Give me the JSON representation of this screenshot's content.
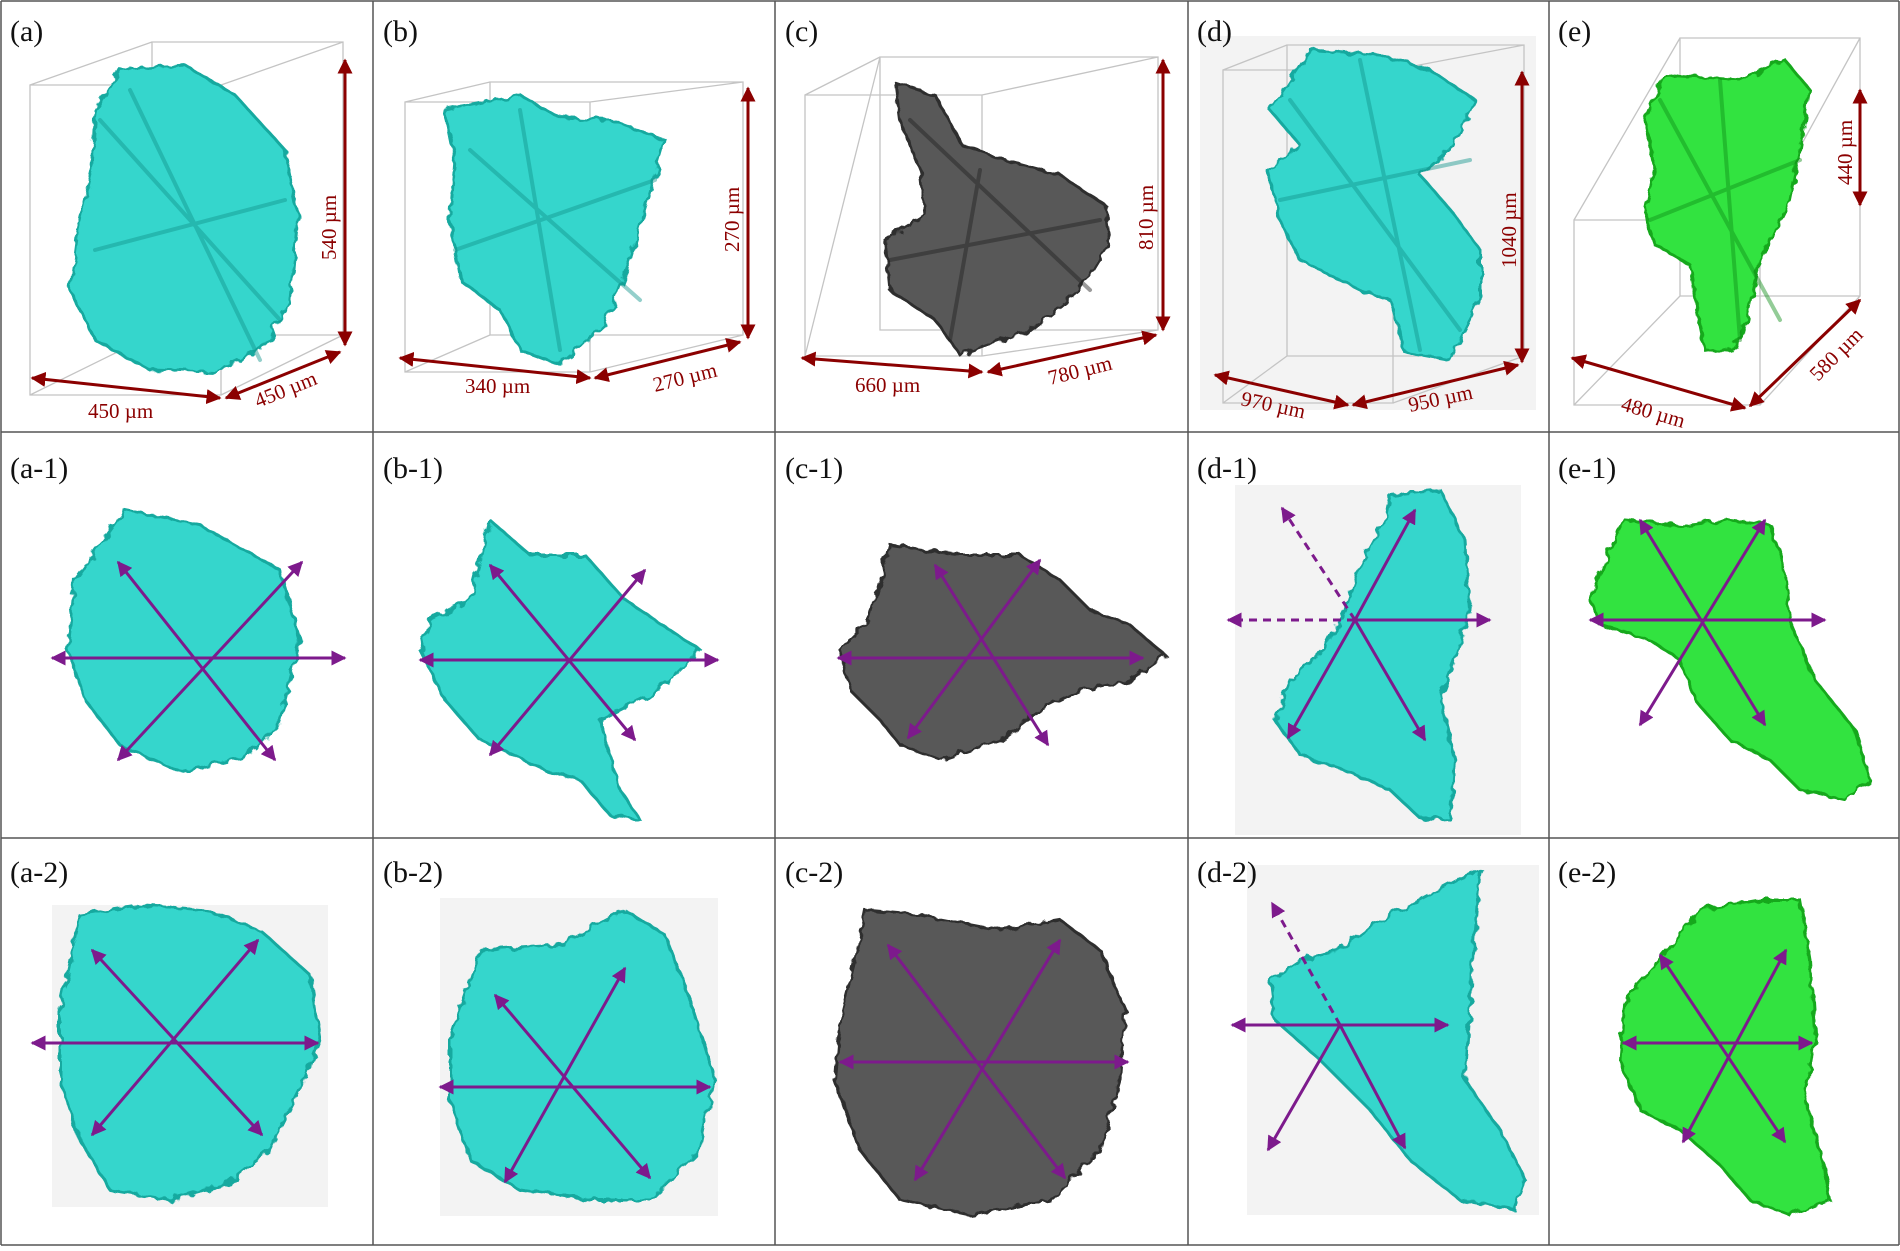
{
  "colors": {
    "cyan": "#35d6cc",
    "cyan_dark": "#16a99f",
    "gray": "#595959",
    "gray_dark": "#2f2f2f",
    "green": "#33e33f",
    "green_dark": "#13a81d",
    "arrow_purple": "#7d1a8c",
    "dimension_red": "#8b0000",
    "box_gray": "#bdbdbd",
    "panel_bg": "#f3f3f3",
    "grid_line": "#555555"
  },
  "panels": [
    {
      "id": "a",
      "label": "(a)",
      "row": 0,
      "col": 0,
      "color": "cyan",
      "dims": {
        "width": "450 µm",
        "depth": "450 µm",
        "height": "540 µm"
      }
    },
    {
      "id": "b",
      "label": "(b)",
      "row": 0,
      "col": 1,
      "color": "cyan",
      "dims": {
        "width": "340 µm",
        "depth": "270 µm",
        "height": "270 µm"
      }
    },
    {
      "id": "c",
      "label": "(c)",
      "row": 0,
      "col": 2,
      "color": "gray",
      "dims": {
        "width": "660 µm",
        "depth": "780 µm",
        "height": "810 µm"
      }
    },
    {
      "id": "d",
      "label": "(d)",
      "row": 0,
      "col": 3,
      "color": "cyan",
      "dims": {
        "width": "970 µm",
        "depth": "950 µm",
        "height": "1040 µm"
      }
    },
    {
      "id": "e",
      "label": "(e)",
      "row": 0,
      "col": 4,
      "color": "green",
      "dims": {
        "width": "480 µm",
        "depth": "580 µm",
        "height": "440 µm"
      }
    },
    {
      "id": "a1",
      "label": "(a-1)",
      "row": 1,
      "col": 0,
      "color": "cyan"
    },
    {
      "id": "b1",
      "label": "(b-1)",
      "row": 1,
      "col": 1,
      "color": "cyan"
    },
    {
      "id": "c1",
      "label": "(c-1)",
      "row": 1,
      "col": 2,
      "color": "gray"
    },
    {
      "id": "d1",
      "label": "(d-1)",
      "row": 1,
      "col": 3,
      "color": "cyan"
    },
    {
      "id": "e1",
      "label": "(e-1)",
      "row": 1,
      "col": 4,
      "color": "green"
    },
    {
      "id": "a2",
      "label": "(a-2)",
      "row": 2,
      "col": 0,
      "color": "cyan"
    },
    {
      "id": "b2",
      "label": "(b-2)",
      "row": 2,
      "col": 1,
      "color": "cyan"
    },
    {
      "id": "c2",
      "label": "(c-2)",
      "row": 2,
      "col": 2,
      "color": "gray"
    },
    {
      "id": "d2",
      "label": "(d-2)",
      "row": 2,
      "col": 3,
      "color": "cyan"
    },
    {
      "id": "e2",
      "label": "(e-2)",
      "row": 2,
      "col": 4,
      "color": "green"
    }
  ]
}
